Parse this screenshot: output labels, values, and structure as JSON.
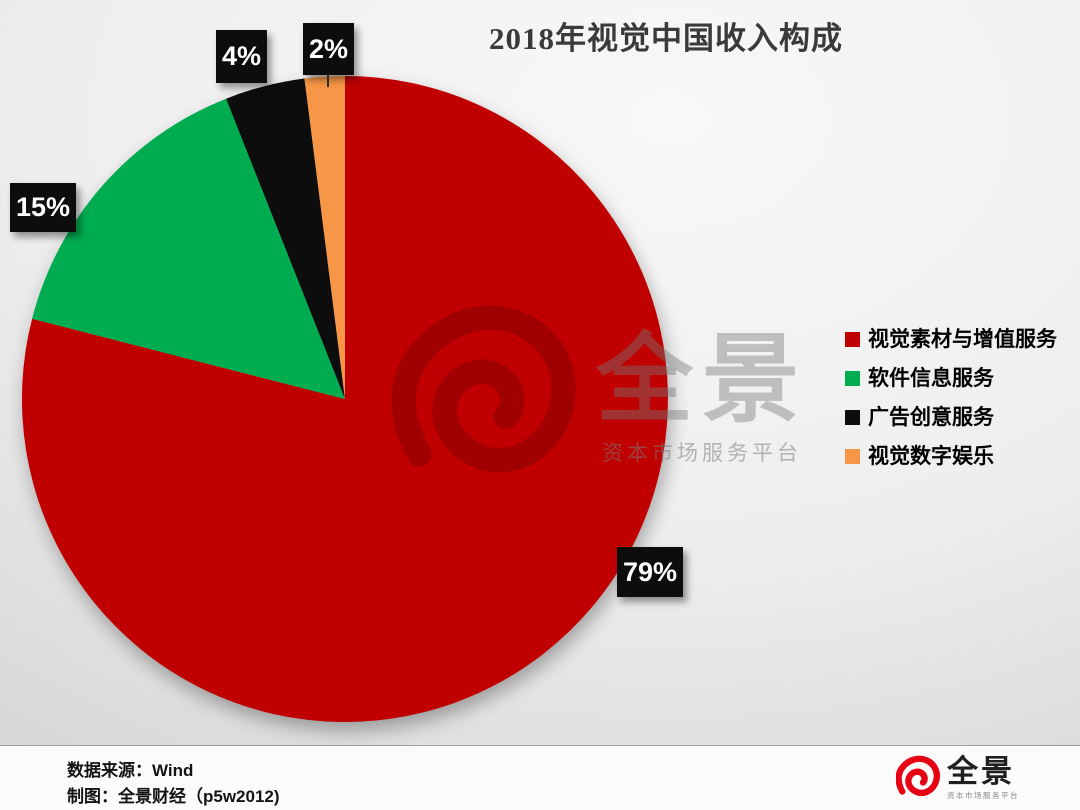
{
  "title": "2018年视觉中国收入构成",
  "chart_data": {
    "type": "pie",
    "title": "2018年视觉中国收入构成",
    "categories": [
      "视觉素材与增值服务",
      "软件信息服务",
      "广告创意服务",
      "视觉数字娱乐"
    ],
    "values": [
      79,
      15,
      4,
      2
    ],
    "display_labels": [
      "79%",
      "15%",
      "4%",
      "2%"
    ],
    "colors": [
      "#c00000",
      "#00ac50",
      "#0d0d0d",
      "#f79646"
    ],
    "unit": "%",
    "start_angle_deg": 0,
    "direction": "clockwise",
    "legend_position": "right",
    "label_style": "white-on-black-box"
  },
  "watermark": {
    "brand": "全景",
    "tagline": "资本市场服务平台",
    "swirl_icon_color_hint": "dark-red-translucent"
  },
  "footer": {
    "source": "数据来源：Wind",
    "credit": "制图：全景财经（p5w2012)",
    "logo": {
      "name": "全景",
      "tagline": "资本市场服务平台",
      "color": "#e60012"
    }
  }
}
